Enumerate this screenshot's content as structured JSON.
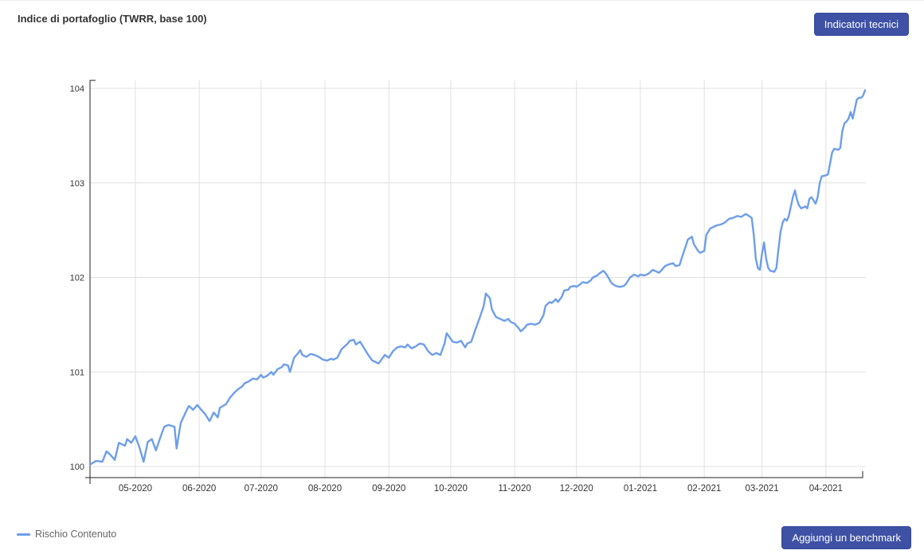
{
  "header": {
    "title": "Indice di portafoglio (TWRR, base 100)",
    "indicators_button_label": "Indicatori tecnici"
  },
  "footer": {
    "benchmark_button_label": "Aggiungi un benchmark"
  },
  "colors": {
    "button_bg": "#3e51a4",
    "button_border": "#36479c",
    "line": "#6d9eeb",
    "grid": "#e0e0e0",
    "axis": "#222222"
  },
  "chart_data": {
    "type": "line",
    "title": "Indice di portafoglio (TWRR, base 100)",
    "grid": true,
    "legend_position": "bottom-left",
    "ylim": [
      100,
      104
    ],
    "y_ticks": [
      100,
      101,
      102,
      103,
      104
    ],
    "x_ticks": [
      "05-2020",
      "06-2020",
      "07-2020",
      "08-2020",
      "09-2020",
      "10-2020",
      "11-2020",
      "12-2020",
      "01-2021",
      "02-2021",
      "03-2021",
      "04-2021"
    ],
    "x_range": [
      "2020-04-09",
      "2021-04-20"
    ],
    "series": [
      {
        "name": "Rischio Contenuto",
        "color": "#6d9eeb",
        "points": [
          [
            "2020-04-09",
            100.02
          ],
          [
            "2020-04-12",
            100.06
          ],
          [
            "2020-04-15",
            100.05
          ],
          [
            "2020-04-17",
            100.16
          ],
          [
            "2020-04-19",
            100.12
          ],
          [
            "2020-04-21",
            100.07
          ],
          [
            "2020-04-23",
            100.25
          ],
          [
            "2020-04-26",
            100.22
          ],
          [
            "2020-04-27",
            100.29
          ],
          [
            "2020-04-29",
            100.25
          ],
          [
            "2020-05-01",
            100.32
          ],
          [
            "2020-05-03",
            100.2
          ],
          [
            "2020-05-05",
            100.05
          ],
          [
            "2020-05-07",
            100.26
          ],
          [
            "2020-05-09",
            100.29
          ],
          [
            "2020-05-11",
            100.17
          ],
          [
            "2020-05-13",
            100.3
          ],
          [
            "2020-05-15",
            100.42
          ],
          [
            "2020-05-17",
            100.44
          ],
          [
            "2020-05-20",
            100.42
          ],
          [
            "2020-05-21",
            100.19
          ],
          [
            "2020-05-23",
            100.46
          ],
          [
            "2020-05-26",
            100.6
          ],
          [
            "2020-05-27",
            100.64
          ],
          [
            "2020-05-29",
            100.6
          ],
          [
            "2020-05-31",
            100.65
          ],
          [
            "2020-06-02",
            100.6
          ],
          [
            "2020-06-04",
            100.55
          ],
          [
            "2020-06-06",
            100.48
          ],
          [
            "2020-06-08",
            100.57
          ],
          [
            "2020-06-10",
            100.52
          ],
          [
            "2020-06-11",
            100.62
          ],
          [
            "2020-06-14",
            100.66
          ],
          [
            "2020-06-16",
            100.73
          ],
          [
            "2020-06-18",
            100.78
          ],
          [
            "2020-06-20",
            100.82
          ],
          [
            "2020-06-22",
            100.85
          ],
          [
            "2020-06-23",
            100.88
          ],
          [
            "2020-06-25",
            100.9
          ],
          [
            "2020-06-27",
            100.93
          ],
          [
            "2020-06-29",
            100.92
          ],
          [
            "2020-07-01",
            100.97
          ],
          [
            "2020-07-02",
            100.94
          ],
          [
            "2020-07-04",
            100.96
          ],
          [
            "2020-07-06",
            101.0
          ],
          [
            "2020-07-07",
            100.97
          ],
          [
            "2020-07-09",
            101.03
          ],
          [
            "2020-07-11",
            101.05
          ],
          [
            "2020-07-12",
            101.08
          ],
          [
            "2020-07-14",
            101.07
          ],
          [
            "2020-07-15",
            101.0
          ],
          [
            "2020-07-17",
            101.15
          ],
          [
            "2020-07-19",
            101.2
          ],
          [
            "2020-07-20",
            101.23
          ],
          [
            "2020-07-21",
            101.18
          ],
          [
            "2020-07-23",
            101.16
          ],
          [
            "2020-07-25",
            101.19
          ],
          [
            "2020-07-27",
            101.18
          ],
          [
            "2020-07-29",
            101.16
          ],
          [
            "2020-07-31",
            101.13
          ],
          [
            "2020-08-02",
            101.12
          ],
          [
            "2020-08-04",
            101.14
          ],
          [
            "2020-08-05",
            101.13
          ],
          [
            "2020-08-07",
            101.15
          ],
          [
            "2020-08-09",
            101.24
          ],
          [
            "2020-08-12",
            101.3
          ],
          [
            "2020-08-13",
            101.33
          ],
          [
            "2020-08-15",
            101.34
          ],
          [
            "2020-08-16",
            101.29
          ],
          [
            "2020-08-18",
            101.32
          ],
          [
            "2020-08-20",
            101.25
          ],
          [
            "2020-08-22",
            101.18
          ],
          [
            "2020-08-24",
            101.12
          ],
          [
            "2020-08-26",
            101.1
          ],
          [
            "2020-08-27",
            101.09
          ],
          [
            "2020-08-29",
            101.15
          ],
          [
            "2020-08-30",
            101.18
          ],
          [
            "2020-09-01",
            101.15
          ],
          [
            "2020-09-03",
            101.22
          ],
          [
            "2020-09-05",
            101.26
          ],
          [
            "2020-09-07",
            101.27
          ],
          [
            "2020-09-09",
            101.26
          ],
          [
            "2020-09-10",
            101.29
          ],
          [
            "2020-09-12",
            101.25
          ],
          [
            "2020-09-14",
            101.27
          ],
          [
            "2020-09-16",
            101.3
          ],
          [
            "2020-09-18",
            101.29
          ],
          [
            "2020-09-20",
            101.22
          ],
          [
            "2020-09-22",
            101.18
          ],
          [
            "2020-09-24",
            101.2
          ],
          [
            "2020-09-26",
            101.18
          ],
          [
            "2020-09-28",
            101.3
          ],
          [
            "2020-09-29",
            101.41
          ],
          [
            "2020-10-01",
            101.35
          ],
          [
            "2020-10-02",
            101.32
          ],
          [
            "2020-10-04",
            101.31
          ],
          [
            "2020-10-06",
            101.33
          ],
          [
            "2020-10-08",
            101.26
          ],
          [
            "2020-10-09",
            101.3
          ],
          [
            "2020-10-11",
            101.32
          ],
          [
            "2020-10-13",
            101.45
          ],
          [
            "2020-10-15",
            101.57
          ],
          [
            "2020-10-17",
            101.7
          ],
          [
            "2020-10-18",
            101.83
          ],
          [
            "2020-10-20",
            101.78
          ],
          [
            "2020-10-21",
            101.66
          ],
          [
            "2020-10-23",
            101.58
          ],
          [
            "2020-10-25",
            101.56
          ],
          [
            "2020-10-27",
            101.54
          ],
          [
            "2020-10-29",
            101.56
          ],
          [
            "2020-10-30",
            101.53
          ],
          [
            "2020-11-01",
            101.51
          ],
          [
            "2020-11-03",
            101.46
          ],
          [
            "2020-11-04",
            101.43
          ],
          [
            "2020-11-06",
            101.47
          ],
          [
            "2020-11-07",
            101.5
          ],
          [
            "2020-11-09",
            101.51
          ],
          [
            "2020-11-11",
            101.5
          ],
          [
            "2020-11-13",
            101.52
          ],
          [
            "2020-11-15",
            101.6
          ],
          [
            "2020-11-16",
            101.7
          ],
          [
            "2020-11-18",
            101.74
          ],
          [
            "2020-11-19",
            101.73
          ],
          [
            "2020-11-21",
            101.77
          ],
          [
            "2020-11-22",
            101.74
          ],
          [
            "2020-11-24",
            101.8
          ],
          [
            "2020-11-25",
            101.86
          ],
          [
            "2020-11-27",
            101.87
          ],
          [
            "2020-11-28",
            101.9
          ],
          [
            "2020-11-30",
            101.91
          ],
          [
            "2020-12-01",
            101.9
          ],
          [
            "2020-12-03",
            101.93
          ],
          [
            "2020-12-04",
            101.95
          ],
          [
            "2020-12-06",
            101.94
          ],
          [
            "2020-12-08",
            101.97
          ],
          [
            "2020-12-09",
            102.0
          ],
          [
            "2020-12-11",
            102.02
          ],
          [
            "2020-12-12",
            102.04
          ],
          [
            "2020-12-14",
            102.07
          ],
          [
            "2020-12-15",
            102.05
          ],
          [
            "2020-12-17",
            101.98
          ],
          [
            "2020-12-18",
            101.94
          ],
          [
            "2020-12-20",
            101.91
          ],
          [
            "2020-12-22",
            101.9
          ],
          [
            "2020-12-24",
            101.91
          ],
          [
            "2020-12-25",
            101.93
          ],
          [
            "2020-12-27",
            102.0
          ],
          [
            "2020-12-29",
            102.03
          ],
          [
            "2020-12-31",
            102.01
          ],
          [
            "2021-01-01",
            102.03
          ],
          [
            "2021-01-03",
            102.02
          ],
          [
            "2021-01-05",
            102.04
          ],
          [
            "2021-01-07",
            102.08
          ],
          [
            "2021-01-08",
            102.07
          ],
          [
            "2021-01-10",
            102.05
          ],
          [
            "2021-01-11",
            102.07
          ],
          [
            "2021-01-13",
            102.12
          ],
          [
            "2021-01-15",
            102.14
          ],
          [
            "2021-01-17",
            102.15
          ],
          [
            "2021-01-18",
            102.12
          ],
          [
            "2021-01-20",
            102.13
          ],
          [
            "2021-01-21",
            102.2
          ],
          [
            "2021-01-23",
            102.33
          ],
          [
            "2021-01-24",
            102.4
          ],
          [
            "2021-01-26",
            102.43
          ],
          [
            "2021-01-27",
            102.35
          ],
          [
            "2021-01-29",
            102.28
          ],
          [
            "2021-01-30",
            102.26
          ],
          [
            "2021-02-01",
            102.28
          ],
          [
            "2021-02-02",
            102.45
          ],
          [
            "2021-02-04",
            102.52
          ],
          [
            "2021-02-05",
            102.53
          ],
          [
            "2021-02-07",
            102.55
          ],
          [
            "2021-02-09",
            102.56
          ],
          [
            "2021-02-11",
            102.58
          ],
          [
            "2021-02-13",
            102.62
          ],
          [
            "2021-02-15",
            102.63
          ],
          [
            "2021-02-17",
            102.65
          ],
          [
            "2021-02-19",
            102.64
          ],
          [
            "2021-02-21",
            102.67
          ],
          [
            "2021-02-22",
            102.66
          ],
          [
            "2021-02-24",
            102.63
          ],
          [
            "2021-02-25",
            102.45
          ],
          [
            "2021-02-26",
            102.2
          ],
          [
            "2021-02-27",
            102.1
          ],
          [
            "2021-02-28",
            102.08
          ],
          [
            "2021-03-01",
            102.25
          ],
          [
            "2021-03-02",
            102.37
          ],
          [
            "2021-03-03",
            102.2
          ],
          [
            "2021-03-04",
            102.1
          ],
          [
            "2021-03-05",
            102.07
          ],
          [
            "2021-03-07",
            102.06
          ],
          [
            "2021-03-08",
            102.1
          ],
          [
            "2021-03-09",
            102.3
          ],
          [
            "2021-03-10",
            102.48
          ],
          [
            "2021-03-11",
            102.58
          ],
          [
            "2021-03-12",
            102.62
          ],
          [
            "2021-03-13",
            102.6
          ],
          [
            "2021-03-14",
            102.65
          ],
          [
            "2021-03-16",
            102.85
          ],
          [
            "2021-03-17",
            102.92
          ],
          [
            "2021-03-18",
            102.82
          ],
          [
            "2021-03-19",
            102.76
          ],
          [
            "2021-03-20",
            102.73
          ],
          [
            "2021-03-22",
            102.75
          ],
          [
            "2021-03-23",
            102.73
          ],
          [
            "2021-03-24",
            102.83
          ],
          [
            "2021-03-25",
            102.85
          ],
          [
            "2021-03-27",
            102.78
          ],
          [
            "2021-03-28",
            102.85
          ],
          [
            "2021-03-29",
            103.0
          ],
          [
            "2021-03-30",
            103.07
          ],
          [
            "2021-04-01",
            103.08
          ],
          [
            "2021-04-02",
            103.09
          ],
          [
            "2021-04-03",
            103.2
          ],
          [
            "2021-04-04",
            103.32
          ],
          [
            "2021-04-05",
            103.36
          ],
          [
            "2021-04-07",
            103.35
          ],
          [
            "2021-04-08",
            103.37
          ],
          [
            "2021-04-09",
            103.55
          ],
          [
            "2021-04-10",
            103.63
          ],
          [
            "2021-04-11",
            103.65
          ],
          [
            "2021-04-12",
            103.68
          ],
          [
            "2021-04-13",
            103.75
          ],
          [
            "2021-04-14",
            103.68
          ],
          [
            "2021-04-15",
            103.78
          ],
          [
            "2021-04-16",
            103.88
          ],
          [
            "2021-04-17",
            103.9
          ],
          [
            "2021-04-18",
            103.9
          ],
          [
            "2021-04-19",
            103.92
          ],
          [
            "2021-04-20",
            103.98
          ]
        ]
      }
    ]
  }
}
